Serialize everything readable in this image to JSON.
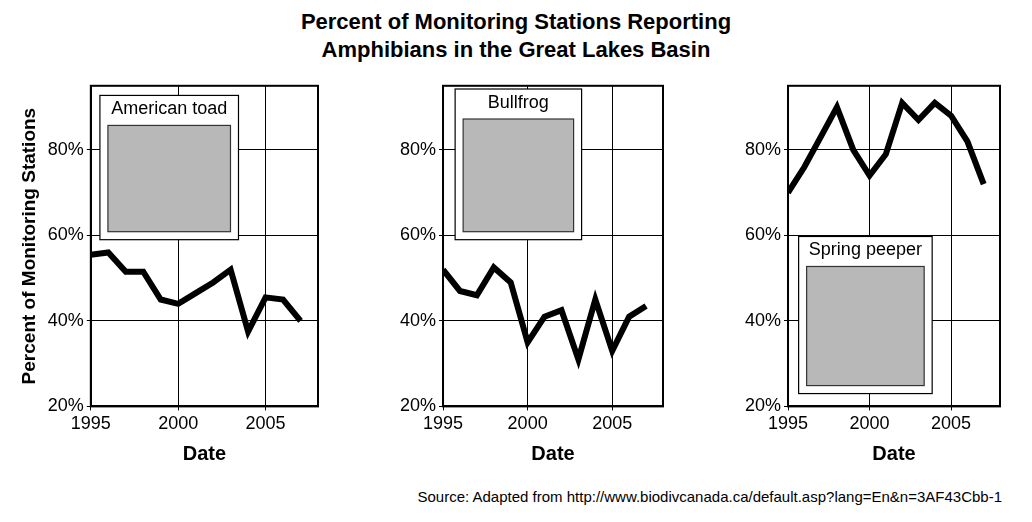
{
  "title": "Percent of Monitoring Stations Reporting\nAmphibians in the Great Lakes Basin",
  "source": "Source: Adapted from http://www.biodivcanada.ca/default.asp?lang=En&n=3AF43Cbb-1",
  "chart_data": [
    {
      "type": "line",
      "title": "American toad",
      "x_label": "Date",
      "y_label": "Percent of Monitoring Stations",
      "x": [
        1995,
        1996,
        1997,
        1998,
        1999,
        2000,
        2001,
        2002,
        2003,
        2004,
        2005,
        2006,
        2007
      ],
      "values": [
        55.5,
        56,
        51.5,
        51.5,
        45,
        44,
        46.5,
        49,
        52,
        37.5,
        45.5,
        45,
        40
      ],
      "color": "#000000",
      "xlim": [
        1995,
        2008
      ],
      "xticks": [
        1995,
        2000,
        2005
      ],
      "ylim": [
        20,
        95
      ],
      "yticks": [
        {
          "value": 20,
          "label": "20%"
        },
        {
          "value": 40,
          "label": "40%"
        },
        {
          "value": 60,
          "label": "60%"
        },
        {
          "value": 80,
          "label": "80%"
        }
      ],
      "grid": true
    },
    {
      "type": "line",
      "title": "Bullfrog",
      "x_label": "Date",
      "x": [
        1995,
        1996,
        1997,
        1998,
        1999,
        2000,
        2001,
        2002,
        2003,
        2004,
        2005,
        2006,
        2007
      ],
      "values": [
        52,
        47,
        46,
        52.5,
        49,
        35,
        41,
        42.5,
        31,
        45,
        33,
        41,
        43.5
      ],
      "color": "#000000",
      "xlim": [
        1995,
        2008
      ],
      "xticks": [
        1995,
        2000,
        2005
      ],
      "ylim": [
        20,
        95
      ],
      "yticks": [
        {
          "value": 20,
          "label": "20%"
        },
        {
          "value": 40,
          "label": "40%"
        },
        {
          "value": 60,
          "label": "60%"
        },
        {
          "value": 80,
          "label": "80%"
        }
      ],
      "grid": true
    },
    {
      "type": "line",
      "title": "Spring peeper",
      "x_label": "Date",
      "x": [
        1995,
        1996,
        1997,
        1998,
        1999,
        2000,
        2001,
        2002,
        2003,
        2004,
        2005,
        2006,
        2007
      ],
      "values": [
        70,
        76,
        83,
        90,
        80,
        74,
        79,
        91,
        87,
        91,
        88,
        82,
        72
      ],
      "color": "#000000",
      "xlim": [
        1995,
        2008
      ],
      "xticks": [
        1995,
        2000,
        2005
      ],
      "ylim": [
        20,
        95
      ],
      "yticks": [
        {
          "value": 20,
          "label": "20%"
        },
        {
          "value": 40,
          "label": "40%"
        },
        {
          "value": 60,
          "label": "60%"
        },
        {
          "value": 80,
          "label": "80%"
        }
      ],
      "grid": true
    }
  ]
}
